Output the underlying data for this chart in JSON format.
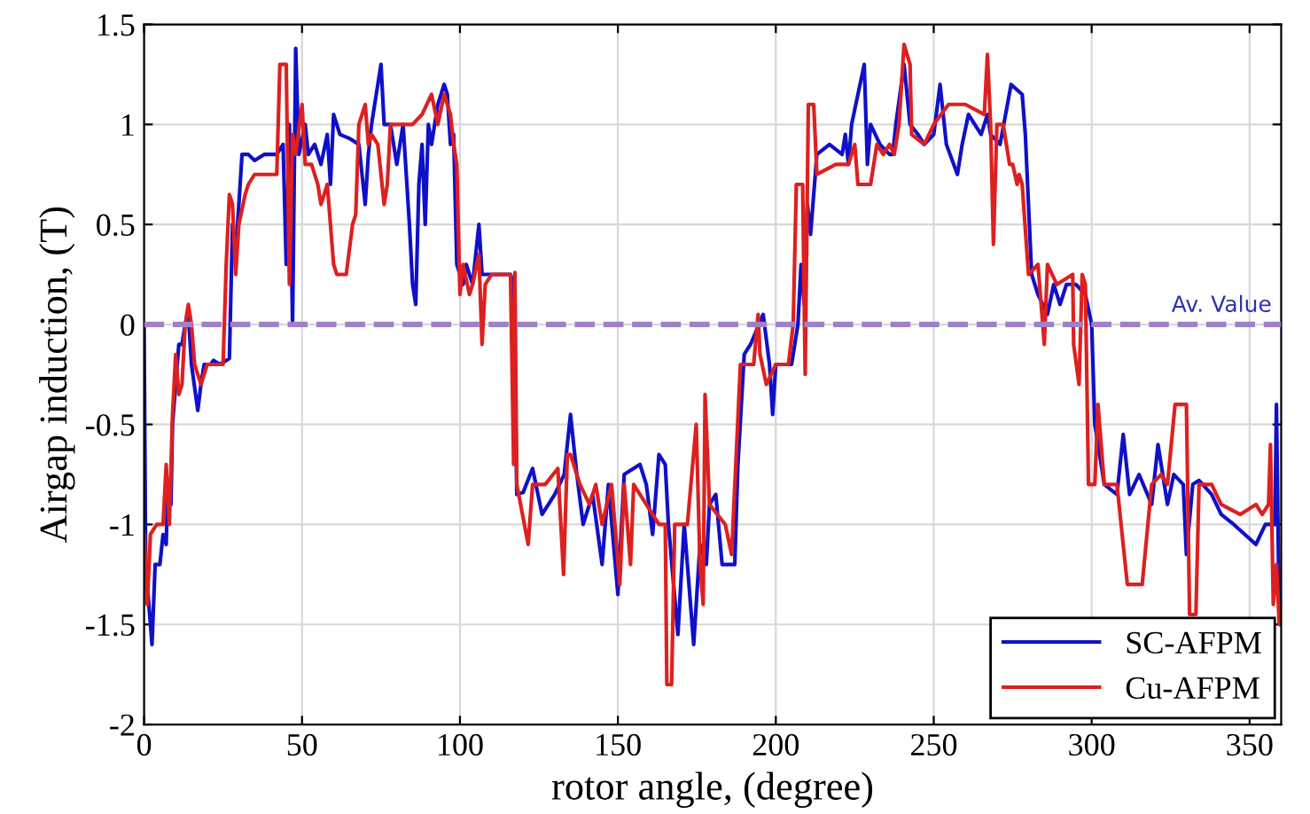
{
  "chart_data": {
    "type": "line",
    "xlabel": "rotor angle, (degree)",
    "ylabel": "Airgap induction, (T)",
    "xlim": [
      0,
      360
    ],
    "ylim": [
      -2,
      1.5
    ],
    "xticks": [
      0,
      50,
      100,
      150,
      200,
      250,
      300,
      350
    ],
    "yticks": [
      -2,
      -1.5,
      -1,
      -0.5,
      0,
      0.5,
      1,
      1.5
    ],
    "grid": true,
    "legend": "bottom right",
    "line_style": "solid",
    "marker": "none",
    "ref_lines": [
      {
        "axis": "y",
        "value": 0,
        "label": "Av. Value",
        "color": "#a080c8",
        "line_style": "dashed"
      }
    ],
    "series": [
      {
        "name": "SC-AFPM",
        "color": "#1010c8",
        "x": [
          0,
          0.5,
          2.5,
          3.5,
          5,
          6,
          7,
          7.5,
          8.5,
          9,
          10,
          11,
          12,
          13,
          14,
          15,
          17,
          18,
          19,
          21,
          22,
          24,
          27,
          28,
          29,
          30,
          31,
          33,
          35,
          38,
          42,
          44,
          45,
          46,
          47,
          48,
          49,
          51,
          52,
          54,
          56,
          58,
          59,
          60,
          62,
          65,
          68,
          70,
          71,
          72,
          74,
          75,
          76,
          78,
          80,
          82,
          84,
          85,
          86,
          87,
          88,
          89,
          90,
          91,
          93,
          95,
          96,
          97,
          98,
          99,
          100,
          101,
          102,
          104,
          106,
          107,
          110,
          116,
          117,
          118,
          120,
          121,
          123,
          126,
          130,
          133,
          135,
          137,
          139,
          142,
          145,
          147,
          150,
          152,
          157,
          159,
          161,
          163,
          165,
          166,
          169,
          171,
          174,
          176,
          178,
          179,
          181,
          183,
          187,
          188,
          190,
          192,
          196,
          198,
          199,
          200,
          205,
          206,
          207,
          208,
          209,
          210,
          211,
          213,
          217,
          221,
          222,
          223,
          224,
          228,
          229,
          230,
          233,
          236,
          237,
          238,
          240.6,
          242.5,
          245,
          247,
          250,
          252,
          254,
          257.5,
          259,
          261,
          265,
          267,
          268,
          271,
          274.5,
          278,
          279,
          281,
          283,
          286,
          288,
          290,
          292,
          295,
          298,
          300,
          301,
          302,
          304,
          308,
          310,
          312,
          315,
          319,
          321,
          324,
          326,
          329,
          330,
          332,
          334,
          338,
          341,
          345,
          352,
          355,
          358,
          358.5,
          359.4,
          360
        ],
        "values": [
          0,
          -1.2,
          -1.6,
          -1.2,
          -1.2,
          -1.05,
          -1.1,
          -0.8,
          -0.9,
          -0.5,
          -0.3,
          -0.1,
          -0.1,
          0,
          0.05,
          -0.2,
          -0.43,
          -0.3,
          -0.2,
          -0.2,
          -0.18,
          -0.2,
          -0.17,
          0.5,
          0.35,
          0.6,
          0.85,
          0.85,
          0.82,
          0.85,
          0.85,
          0.9,
          0.3,
          1.0,
          0,
          1.38,
          0.85,
          1.0,
          0.85,
          0.9,
          0.8,
          0.95,
          0.7,
          1.05,
          0.95,
          0.93,
          0.9,
          0.6,
          0.85,
          1.0,
          1.2,
          1.3,
          1.0,
          1.0,
          0.8,
          1.0,
          0.5,
          0.2,
          0.1,
          0.7,
          0.9,
          0.5,
          1.0,
          0.9,
          1.1,
          1.2,
          1.15,
          0.9,
          0.95,
          0.3,
          0.25,
          0.2,
          0.3,
          0.2,
          0.5,
          0.25,
          0.25,
          0.25,
          0.2,
          -0.85,
          -0.84,
          -0.8,
          -0.72,
          -0.95,
          -0.85,
          -0.75,
          -0.45,
          -0.75,
          -1.0,
          -0.85,
          -1.2,
          -0.8,
          -1.35,
          -0.75,
          -0.7,
          -0.8,
          -1.05,
          -0.65,
          -0.7,
          -1.0,
          -1.55,
          -1.0,
          -1.6,
          -1.1,
          -1.2,
          -0.9,
          -0.85,
          -1.2,
          -1.2,
          -0.7,
          -0.15,
          -0.1,
          0.05,
          -0.2,
          -0.45,
          -0.2,
          -0.2,
          -0.1,
          0,
          0.3,
          0.1,
          0.6,
          0.45,
          0.85,
          0.9,
          0.85,
          0.95,
          0.8,
          1.0,
          1.3,
          0.8,
          1.0,
          0.9,
          0.85,
          0.85,
          1.0,
          1.3,
          1.0,
          0.95,
          0.9,
          0.95,
          1.2,
          0.9,
          0.75,
          0.9,
          1.05,
          0.95,
          1.05,
          0.95,
          0.9,
          1.2,
          1.15,
          0.95,
          0.25,
          0.15,
          0.05,
          0.2,
          0.1,
          0.2,
          0.2,
          0.15,
          0,
          -0.5,
          -0.6,
          -0.8,
          -0.85,
          -0.55,
          -0.85,
          -0.75,
          -0.9,
          -0.6,
          -0.9,
          -0.75,
          -0.8,
          -1.15,
          -0.8,
          -0.78,
          -0.85,
          -0.95,
          -1.0,
          -1.1,
          -1.0,
          -1.0,
          -0.4,
          -1.5,
          -1.5
        ]
      },
      {
        "name": "Cu-AFPM",
        "color": "#dd2020",
        "x": [
          0,
          1,
          2,
          4,
          6,
          7,
          8,
          9,
          10,
          11,
          12,
          13,
          14,
          15,
          16,
          17,
          18,
          20,
          22,
          25,
          26,
          27,
          28,
          29,
          30,
          32,
          33,
          35,
          38,
          42,
          43,
          45,
          46,
          47,
          48,
          50,
          51,
          53,
          55,
          56,
          58,
          59,
          60,
          61,
          64,
          66,
          67,
          68,
          70,
          71,
          72,
          74,
          76,
          77,
          78,
          80,
          85,
          88,
          91,
          93,
          95,
          97,
          98,
          99,
          100,
          101,
          103,
          104,
          106,
          107,
          108,
          110,
          116,
          117,
          117.4,
          118,
          121.6,
          123,
          127,
          131,
          132.8,
          134,
          135,
          138,
          141,
          143,
          145,
          148,
          150.6,
          152,
          154,
          155,
          159,
          163,
          165,
          165.5,
          167,
          168,
          172,
          174.8,
          176,
          177,
          177.6,
          179,
          184,
          186,
          188.8,
          193,
          194.4,
          195,
          197,
          200,
          204,
          205.5,
          206.5,
          208.5,
          209.3,
          210.3,
          212,
          213,
          219,
          223,
          225,
          226,
          230,
          232,
          234,
          236,
          237.5,
          239,
          240.6,
          242.5,
          243,
          247,
          250,
          254.7,
          260,
          266,
          267,
          268,
          268.9,
          270,
          272,
          274,
          275,
          276.4,
          277,
          278,
          280,
          283,
          285,
          286,
          289,
          294,
          294.3,
          296,
          297,
          298,
          299,
          301,
          302,
          304,
          306,
          308,
          311.3,
          316,
          319,
          322,
          324,
          326.4,
          330,
          331,
          333,
          334,
          338,
          341,
          347,
          352,
          354,
          356,
          356.6,
          357.5,
          358.5,
          359.4,
          360
        ],
        "values": [
          -1.05,
          -1.4,
          -1.05,
          -1.0,
          -1.0,
          -0.7,
          -1.0,
          -0.45,
          -0.15,
          -0.35,
          -0.3,
          0,
          0.1,
          0,
          -0.2,
          -0.25,
          -0.3,
          -0.2,
          -0.2,
          -0.2,
          0.3,
          0.65,
          0.6,
          0.25,
          0.5,
          0.65,
          0.7,
          0.75,
          0.75,
          0.75,
          1.3,
          1.3,
          0.2,
          0.95,
          0.85,
          1.1,
          0.8,
          0.8,
          0.7,
          0.6,
          0.7,
          0.5,
          0.3,
          0.25,
          0.25,
          0.5,
          0.55,
          1.0,
          1.1,
          0.9,
          0.95,
          0.9,
          0.6,
          0.7,
          1.0,
          1.0,
          1.0,
          1.05,
          1.15,
          1.0,
          1.15,
          1.05,
          0.9,
          0.8,
          0.15,
          0.3,
          0.15,
          0.2,
          0.35,
          -0.1,
          0.2,
          0.25,
          0.25,
          -0.7,
          0.26,
          -0.8,
          -1.1,
          -0.8,
          -0.8,
          -0.72,
          -1.25,
          -0.65,
          -0.65,
          -0.8,
          -0.9,
          -0.8,
          -1.0,
          -0.8,
          -1.3,
          -0.8,
          -1.2,
          -0.8,
          -0.9,
          -1.0,
          -1.0,
          -1.8,
          -1.8,
          -1.0,
          -1.0,
          -0.5,
          -1.2,
          -1.4,
          -0.35,
          -0.9,
          -1.0,
          -1.15,
          -0.2,
          -0.2,
          0.05,
          -0.15,
          -0.3,
          -0.2,
          -0.2,
          0,
          0.7,
          0.7,
          -0.25,
          1.1,
          1.1,
          0.75,
          0.8,
          0.8,
          0.9,
          0.7,
          0.7,
          0.9,
          0.85,
          0.9,
          0.85,
          1.0,
          1.4,
          1.3,
          0.95,
          0.9,
          1.0,
          1.1,
          1.1,
          1.05,
          1.35,
          1.0,
          0.4,
          1.0,
          1.0,
          0.8,
          0.8,
          0.7,
          0.75,
          0.7,
          0.25,
          0.3,
          -0.1,
          0.3,
          0.2,
          0.25,
          -0.1,
          -0.3,
          0.25,
          0.2,
          -0.8,
          -0.8,
          -0.4,
          -0.8,
          -0.8,
          -0.8,
          -1.3,
          -1.3,
          -0.8,
          -0.75,
          -0.8,
          -0.4,
          -0.4,
          -1.45,
          -1.45,
          -0.8,
          -0.8,
          -0.9,
          -0.95,
          -0.9,
          -0.95,
          -0.9,
          -0.6,
          -1.4,
          -1.2,
          -1.5,
          -1.4
        ]
      }
    ]
  }
}
